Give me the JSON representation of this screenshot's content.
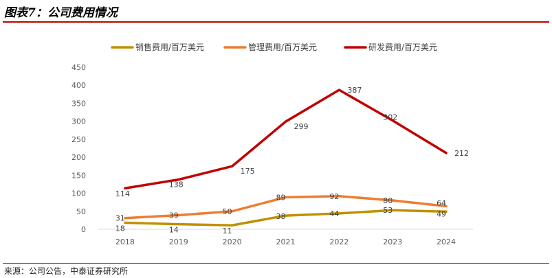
{
  "header": {
    "title": "图表7：公司费用情况"
  },
  "footer": {
    "source": "来源：公司公告，中泰证券研究所"
  },
  "colors": {
    "accent": "#c00000",
    "rule": "#c00000"
  },
  "chart_data": {
    "type": "line",
    "categories": [
      "2018",
      "2019",
      "2020",
      "2021",
      "2022",
      "2023",
      "2024"
    ],
    "series": [
      {
        "name": "销售费用/百万美元",
        "color": "#bf9000",
        "values": [
          18,
          14,
          11,
          38,
          44,
          53,
          49
        ]
      },
      {
        "name": "管理费用/百万美元",
        "color": "#ed7d31",
        "values": [
          31,
          39,
          50,
          89,
          92,
          80,
          64
        ]
      },
      {
        "name": "研发费用/百万美元",
        "color": "#c00000",
        "values": [
          114,
          138,
          175,
          299,
          387,
          302,
          212
        ]
      }
    ],
    "ylim": [
      0,
      450
    ],
    "yticks": [
      0,
      50,
      100,
      150,
      200,
      250,
      300,
      350,
      400,
      450
    ],
    "legend_position": "top",
    "grid": false
  }
}
